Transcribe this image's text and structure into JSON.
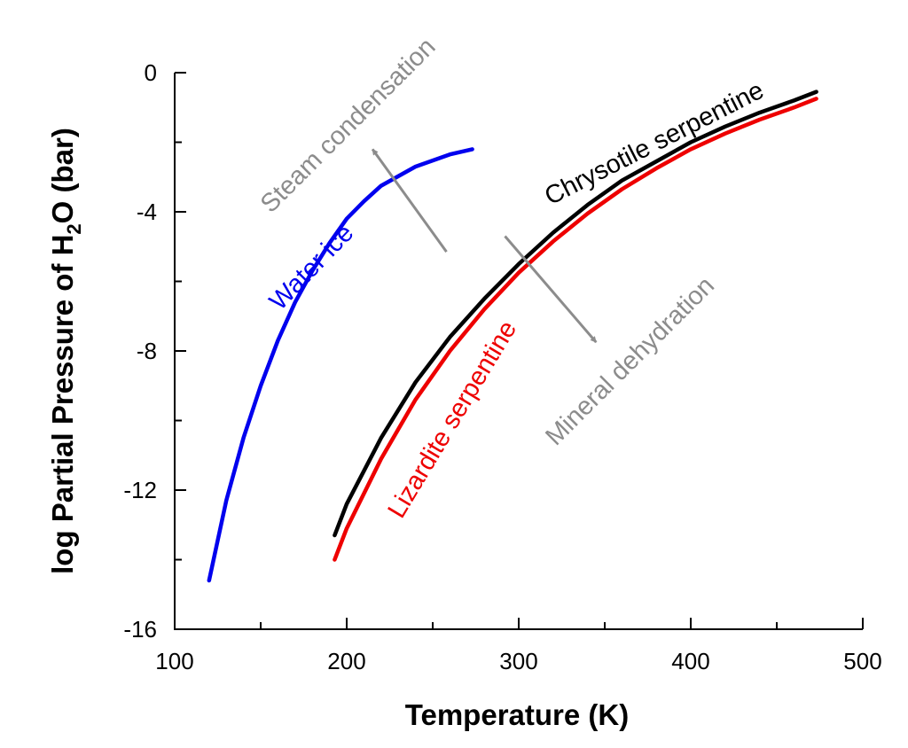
{
  "chart_data": {
    "type": "line",
    "xlabel": "Temperature (K)",
    "ylabel": {
      "prefix": "log Partial Pressure of H",
      "subscript": "2",
      "suffix": "O (bar)"
    },
    "xlim": [
      100,
      500
    ],
    "ylim": [
      -16,
      0
    ],
    "x_ticks": [
      100,
      200,
      300,
      400,
      500
    ],
    "x_tick_labels": [
      "100",
      "200",
      "300",
      "400",
      "500"
    ],
    "y_ticks": [
      0,
      -4,
      -8,
      -12,
      -16
    ],
    "y_tick_labels": [
      "0",
      "-4",
      "-8",
      "-12",
      "-16"
    ],
    "grid": false,
    "series": [
      {
        "name": "Water ice",
        "color": "#0000ee",
        "points": [
          [
            120,
            -14.6
          ],
          [
            130,
            -12.3
          ],
          [
            140,
            -10.5
          ],
          [
            150,
            -9.0
          ],
          [
            160,
            -7.7
          ],
          [
            170,
            -6.6
          ],
          [
            180,
            -5.7
          ],
          [
            190,
            -4.9
          ],
          [
            200,
            -4.2
          ],
          [
            210,
            -3.7
          ],
          [
            220,
            -3.25
          ],
          [
            240,
            -2.7
          ],
          [
            260,
            -2.35
          ],
          [
            273,
            -2.2
          ]
        ]
      },
      {
        "name": "Chrysotile serpentine",
        "color": "#000000",
        "points": [
          [
            193,
            -13.3
          ],
          [
            200,
            -12.4
          ],
          [
            220,
            -10.5
          ],
          [
            240,
            -8.9
          ],
          [
            260,
            -7.6
          ],
          [
            280,
            -6.5
          ],
          [
            300,
            -5.5
          ],
          [
            320,
            -4.6
          ],
          [
            340,
            -3.8
          ],
          [
            360,
            -3.1
          ],
          [
            380,
            -2.55
          ],
          [
            400,
            -2.0
          ],
          [
            420,
            -1.55
          ],
          [
            440,
            -1.15
          ],
          [
            460,
            -0.8
          ],
          [
            473,
            -0.55
          ]
        ]
      },
      {
        "name": "Lizardite serpentine",
        "color": "#ee0000",
        "points": [
          [
            193,
            -14.0
          ],
          [
            200,
            -13.1
          ],
          [
            220,
            -11.1
          ],
          [
            240,
            -9.4
          ],
          [
            260,
            -8.0
          ],
          [
            280,
            -6.8
          ],
          [
            300,
            -5.75
          ],
          [
            320,
            -4.85
          ],
          [
            340,
            -4.05
          ],
          [
            360,
            -3.35
          ],
          [
            380,
            -2.75
          ],
          [
            400,
            -2.2
          ],
          [
            420,
            -1.75
          ],
          [
            440,
            -1.35
          ],
          [
            460,
            -1.0
          ],
          [
            473,
            -0.75
          ]
        ]
      }
    ],
    "annotations": [
      {
        "text": "Steam condensation",
        "color": "#8c8c8c",
        "arrow_from": [
          258,
          -5.15
        ],
        "arrow_to": [
          215,
          -2.2
        ]
      },
      {
        "text": "Mineral dehydration",
        "color": "#8c8c8c",
        "arrow_from": [
          292,
          -4.7
        ],
        "arrow_to": [
          345,
          -7.75
        ]
      }
    ]
  }
}
